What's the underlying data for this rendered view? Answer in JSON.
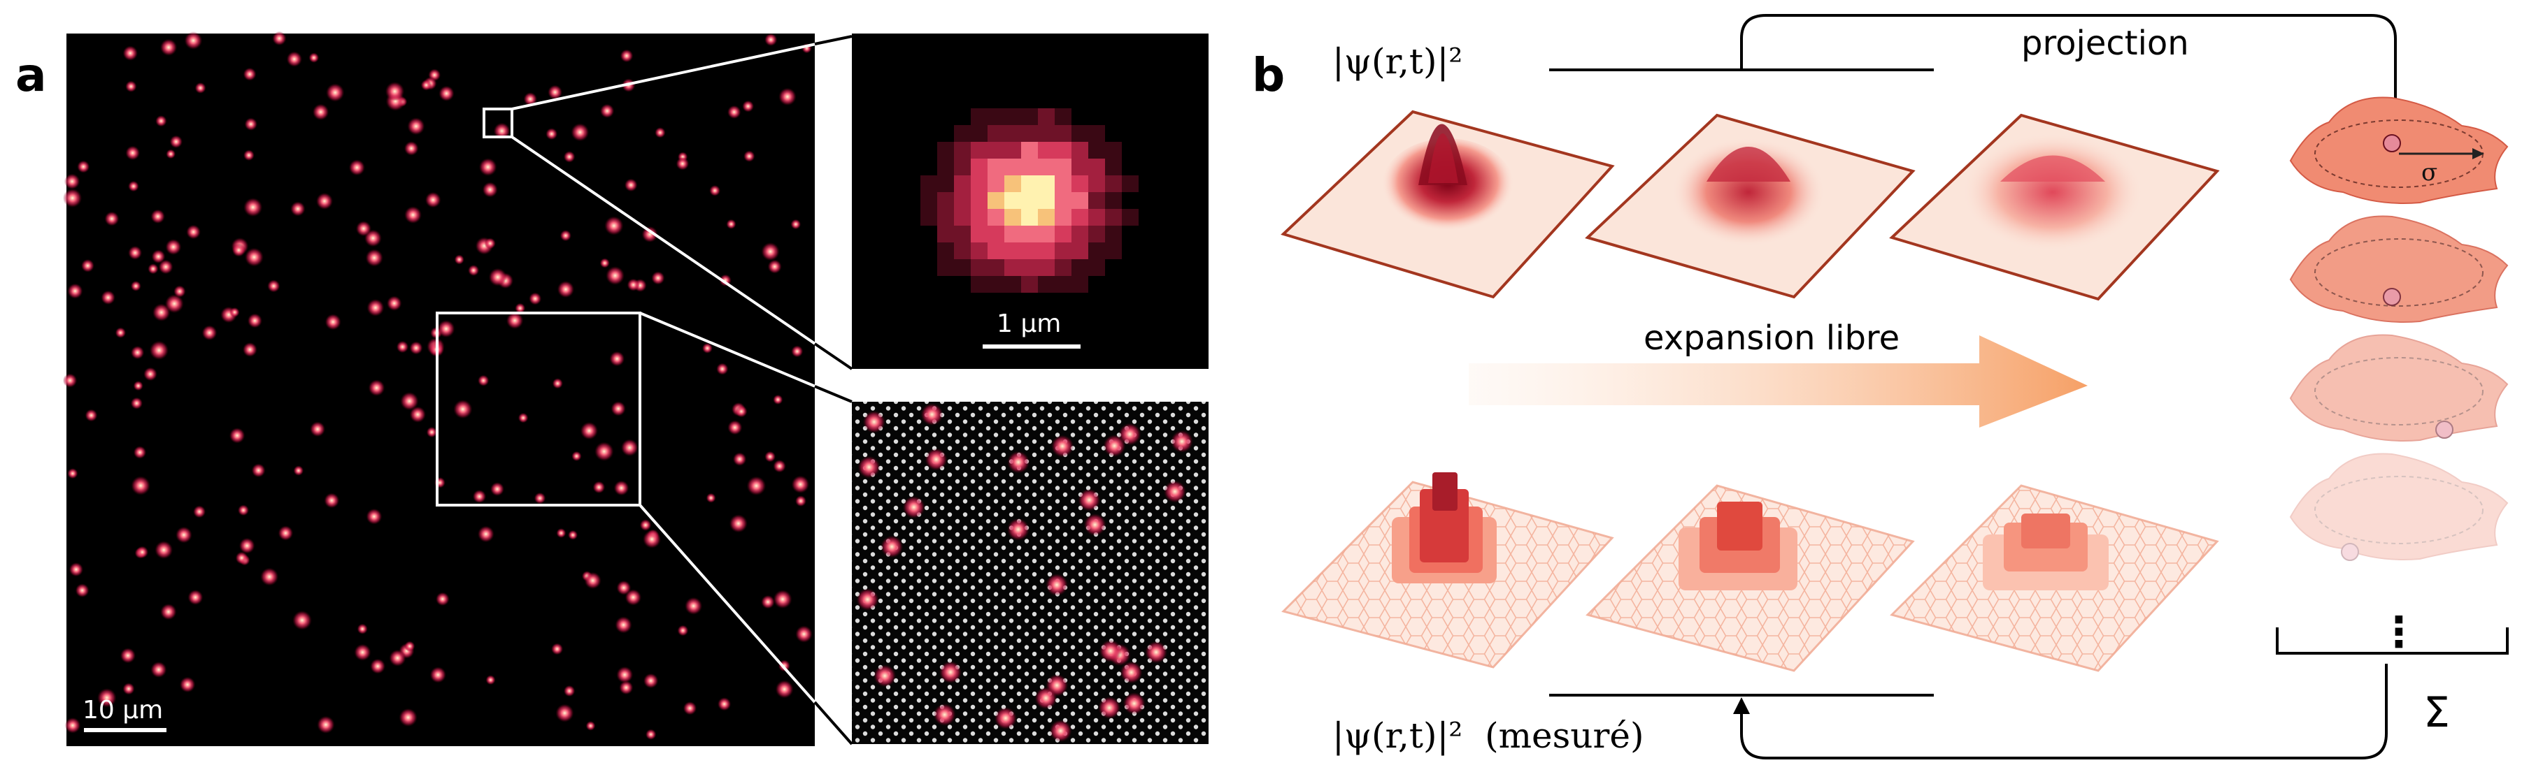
{
  "panel_a": {
    "letter": "a",
    "main_scalebar": "10 μm",
    "zoom_scalebar": "1 μm"
  },
  "panel_b": {
    "letter": "b",
    "top_label": "|ψ(r,t)|²",
    "bottom_label": "|ψ(r,t)|²  (mesuré)",
    "projection_label": "projection",
    "expansion_label": "expansion libre",
    "sigma_label": "σ",
    "sum_label": "Σ",
    "ellipsis": "⋮"
  },
  "colors": {
    "dark_bg": "#000000",
    "atom_glow": "#e8315a",
    "surface_light": "#fbe3d8",
    "surface_edge": "#a3361f",
    "peak_dark": "#8a0a1e",
    "arrow_orange": "#f7a46c"
  }
}
